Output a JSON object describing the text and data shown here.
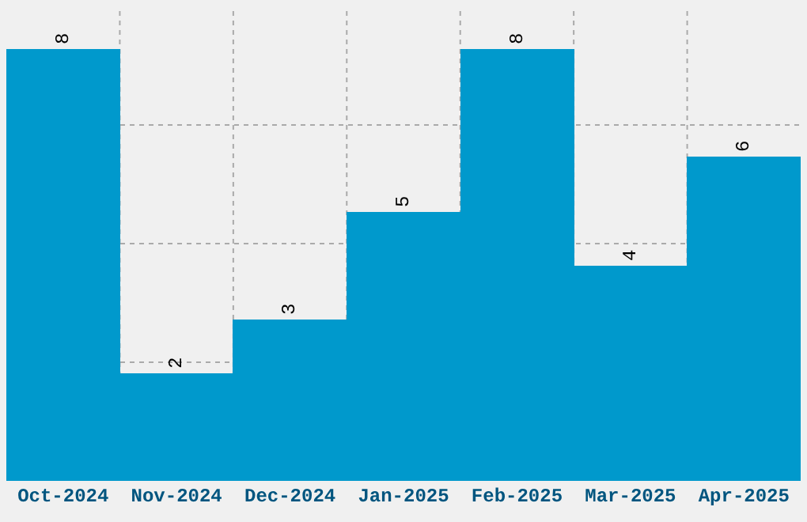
{
  "chart_data": {
    "type": "bar",
    "categories": [
      "Oct-2024",
      "Nov-2024",
      "Dec-2024",
      "Jan-2025",
      "Feb-2025",
      "Mar-2025",
      "Apr-2025"
    ],
    "values": [
      8,
      2,
      3,
      5,
      8,
      4,
      6
    ],
    "color": "#0099cc",
    "ylim": [
      0,
      8.8
    ],
    "yticks": [
      {
        "value": 2.2,
        "label": null
      },
      {
        "value": 4.4,
        "label": null
      },
      {
        "value": 6.6,
        "label": null
      }
    ],
    "tick_labels": "x",
    "data_labels": true,
    "grid": true,
    "legend": false
  }
}
